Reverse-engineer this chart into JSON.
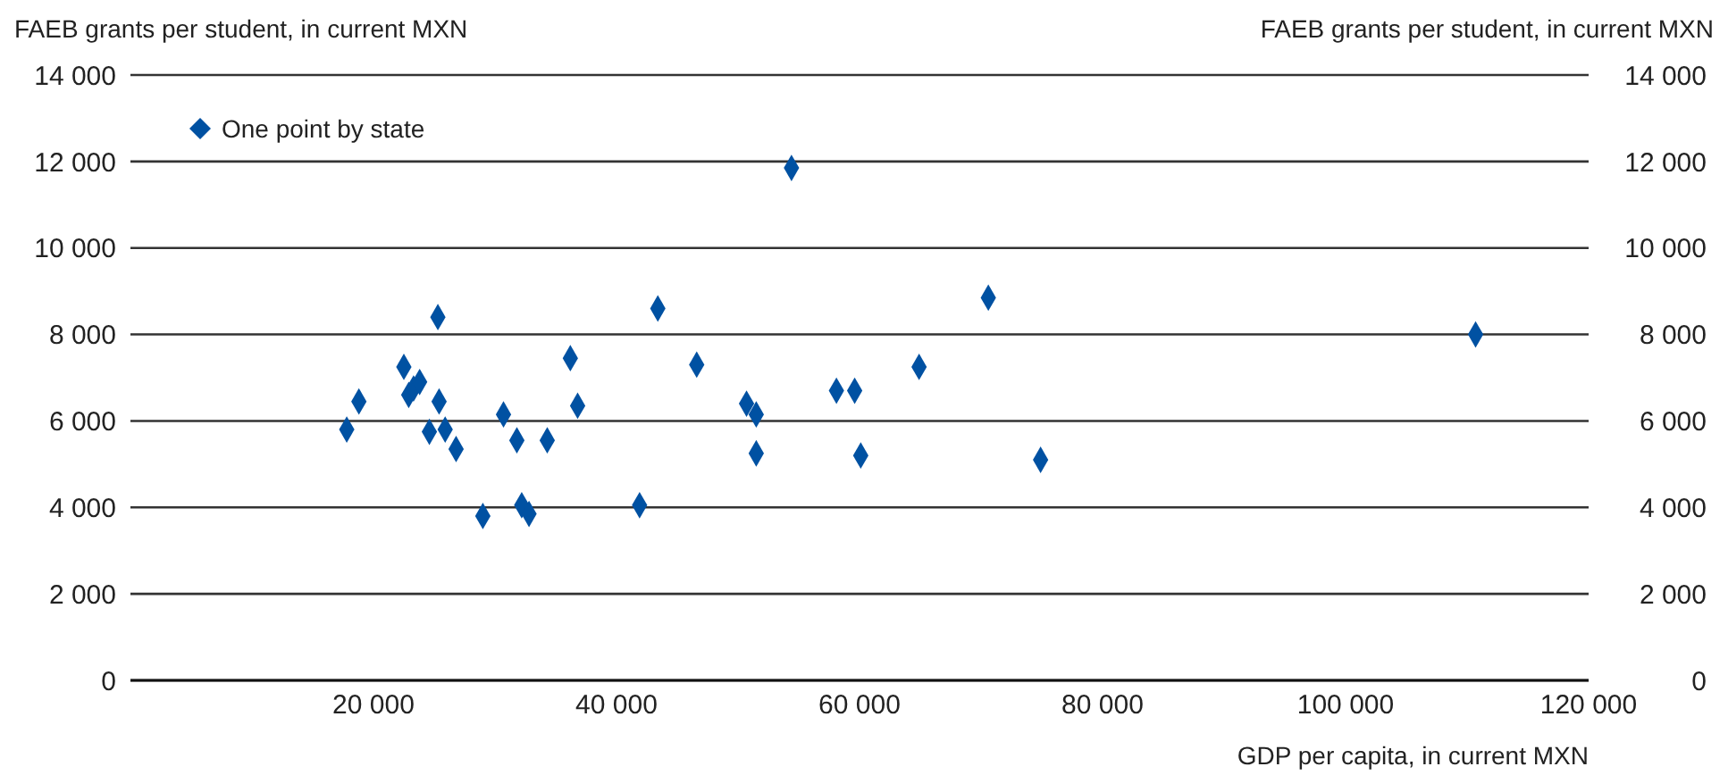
{
  "chart_data": {
    "type": "scatter",
    "xlabel": "GDP per capita, in current MXN",
    "ylabel": "FAEB grants per student, in current MXN",
    "y2label": "FAEB grants per student, in current MXN",
    "x": [
      17800,
      18800,
      22500,
      22900,
      23300,
      23800,
      25300,
      25400,
      24600,
      25900,
      26800,
      29000,
      30700,
      31800,
      32200,
      32800,
      34300,
      43400,
      36200,
      36800,
      46600,
      41900,
      54400,
      50700,
      51500,
      51500,
      58100,
      59600,
      60100,
      64900,
      70600,
      74900,
      110700
    ],
    "series": [
      {
        "name": "One point by state",
        "color": "#0051a2",
        "values": [
          5800,
          6450,
          7250,
          6600,
          6750,
          6900,
          8400,
          6450,
          5750,
          5800,
          5350,
          3800,
          6150,
          5550,
          4050,
          3850,
          5550,
          8600,
          7450,
          6350,
          7300,
          4050,
          11850,
          6400,
          6150,
          5250,
          6700,
          6700,
          5200,
          7250,
          8850,
          5100,
          8000
        ]
      }
    ],
    "xlim": [
      0,
      120000
    ],
    "xticks": [
      {
        "value": 20000,
        "label": "20 000"
      },
      {
        "value": 40000,
        "label": "40 000"
      },
      {
        "value": 60000,
        "label": "60 000"
      },
      {
        "value": 80000,
        "label": "80 000"
      },
      {
        "value": 100000,
        "label": "100 000"
      },
      {
        "value": 120000,
        "label": "120 000"
      }
    ],
    "ylim": [
      0,
      14000
    ],
    "yticks": [
      {
        "value": 0,
        "label": "0"
      },
      {
        "value": 2000,
        "label": "2 000"
      },
      {
        "value": 4000,
        "label": "4 000"
      },
      {
        "value": 6000,
        "label": "6 000"
      },
      {
        "value": 8000,
        "label": "8 000"
      },
      {
        "value": 10000,
        "label": "10 000"
      },
      {
        "value": 12000,
        "label": "12 000"
      },
      {
        "value": 14000,
        "label": "14 000"
      }
    ],
    "y2lim": [
      0,
      14000
    ],
    "y2ticks": [
      {
        "value": 0,
        "label": "0"
      },
      {
        "value": 2000,
        "label": "2 000"
      },
      {
        "value": 4000,
        "label": "4 000"
      },
      {
        "value": 6000,
        "label": "6 000"
      },
      {
        "value": 8000,
        "label": "8 000"
      },
      {
        "value": 10000,
        "label": "10 000"
      },
      {
        "value": 12000,
        "label": "12 000"
      },
      {
        "value": 14000,
        "label": "14 000"
      }
    ],
    "grid": "y",
    "legend": "top left",
    "marker": "diamond"
  }
}
